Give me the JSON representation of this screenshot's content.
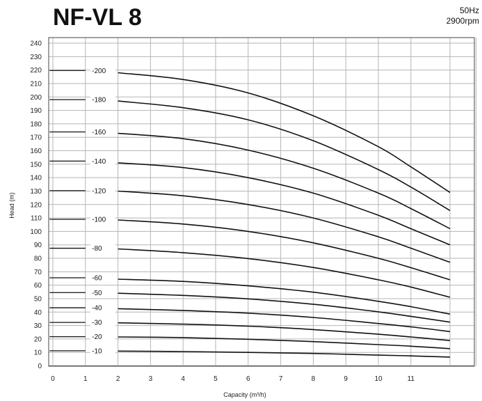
{
  "header": {
    "title": "NF-VL 8",
    "frequency": "50Hz",
    "speed": "2900rpm"
  },
  "chart_data": {
    "type": "line",
    "title": "NF-VL 8",
    "xlabel": "Capacity (m³/h)",
    "ylabel": "Head (m)",
    "xlim": [
      0,
      13
    ],
    "ylim": [
      0,
      245
    ],
    "x_ticks": [
      "0",
      "1",
      "2",
      "3",
      "4",
      "5",
      "6",
      "7",
      "8",
      "9",
      "10",
      "11"
    ],
    "y_ticks": [
      0,
      10,
      20,
      30,
      40,
      50,
      60,
      70,
      80,
      90,
      100,
      110,
      120,
      130,
      140,
      150,
      160,
      170,
      180,
      190,
      200,
      210,
      220,
      230,
      240
    ],
    "grid": true,
    "series": [
      {
        "name": "-10",
        "shutoff": 11.2,
        "x": [
          2,
          4,
          6,
          8,
          10,
          11,
          12.2
        ],
        "y": [
          11,
          10.6,
          10,
          9.2,
          8,
          7.4,
          6.5
        ]
      },
      {
        "name": "-20",
        "shutoff": 21.7,
        "x": [
          2,
          4,
          6,
          8,
          10,
          11,
          12.2
        ],
        "y": [
          21.5,
          21,
          19.8,
          18,
          15.8,
          14.6,
          12.8
        ]
      },
      {
        "name": "-30",
        "shutoff": 32.3,
        "x": [
          2,
          4,
          6,
          8,
          10,
          11,
          12.2
        ],
        "y": [
          32,
          31,
          29.5,
          27,
          23.5,
          21.5,
          18.8
        ]
      },
      {
        "name": "-40",
        "shutoff": 43.2,
        "x": [
          2,
          4,
          6,
          8,
          10,
          11,
          12.2
        ],
        "y": [
          42.5,
          41.2,
          39.2,
          36,
          31.5,
          29,
          25.5
        ]
      },
      {
        "name": "-50",
        "shutoff": 54.5,
        "x": [
          2,
          4,
          6,
          8,
          10,
          11,
          12.2
        ],
        "y": [
          54,
          52.4,
          49.8,
          45.8,
          40.2,
          36.8,
          32.5
        ]
      },
      {
        "name": "-60",
        "shutoff": 65.5,
        "x": [
          2,
          4,
          6,
          8,
          10,
          11,
          12.2
        ],
        "y": [
          64.5,
          62.8,
          59.5,
          54.8,
          48,
          44,
          38.5
        ]
      },
      {
        "name": "-80",
        "shutoff": 87.5,
        "x": [
          2,
          4,
          6,
          8,
          10,
          11,
          12.2
        ],
        "y": [
          87,
          84.2,
          79.8,
          73.2,
          64,
          58.6,
          51
        ]
      },
      {
        "name": "-100",
        "shutoff": 109,
        "x": [
          2,
          4,
          6,
          8,
          10,
          11,
          12.2
        ],
        "y": [
          108.5,
          105.5,
          100,
          91.5,
          80,
          73,
          64
        ]
      },
      {
        "name": "-120",
        "shutoff": 130.3,
        "x": [
          2,
          4,
          6,
          8,
          10,
          11,
          12.2
        ],
        "y": [
          130,
          126.5,
          120,
          110,
          96,
          87.5,
          77
        ]
      },
      {
        "name": "-140",
        "shutoff": 152.3,
        "x": [
          2,
          4,
          6,
          8,
          10,
          11,
          12.2
        ],
        "y": [
          151,
          147.5,
          140,
          128.5,
          112,
          102,
          90
        ]
      },
      {
        "name": "-160",
        "shutoff": 174,
        "x": [
          2,
          4,
          6,
          8,
          10,
          11,
          12.2
        ],
        "y": [
          173,
          169,
          160.5,
          147,
          128.5,
          117,
          102
        ]
      },
      {
        "name": "-180",
        "shutoff": 198,
        "x": [
          2,
          4,
          6,
          8,
          10,
          11,
          12.2
        ],
        "y": [
          197,
          192,
          183,
          167.5,
          146,
          133,
          115.5
        ]
      },
      {
        "name": "-200",
        "shutoff": 219.7,
        "x": [
          2,
          4,
          6,
          8,
          10,
          11,
          12.2
        ],
        "y": [
          218,
          213,
          203,
          186,
          163,
          148,
          129
        ]
      }
    ]
  }
}
